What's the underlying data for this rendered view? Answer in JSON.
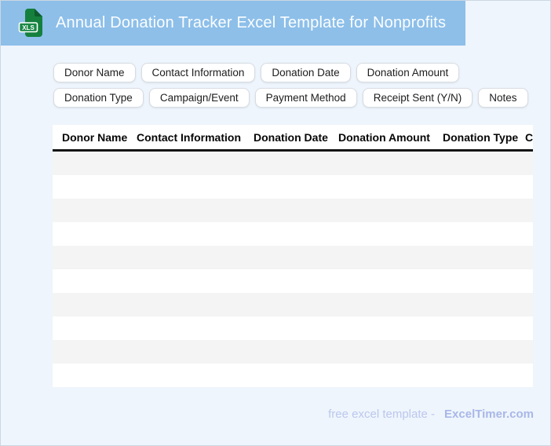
{
  "header": {
    "title": "Annual Donation Tracker Excel Template for Nonprofits",
    "icon_label": "XLS"
  },
  "chips": {
    "row1": [
      "Donor Name",
      "Contact Information",
      "Donation Date",
      "Donation Amount"
    ],
    "row2": [
      "Donation Type",
      "Campaign/Event",
      "Payment Method",
      "Receipt Sent (Y/N)",
      "Notes"
    ]
  },
  "table": {
    "columns": [
      "Donor Name",
      "Contact Information",
      "Donation Date",
      "Donation Amount",
      "Donation Type",
      "Campaign/Event"
    ],
    "row_count": 10,
    "rows": []
  },
  "footer": {
    "prefix": "free excel template -",
    "brand": "ExcelTimer.com"
  },
  "colors": {
    "header_bg": "#8dbfe9",
    "page_bg": "#eef5fc",
    "page_border": "#ccd7e3",
    "stripe_gray": "#f4f4f4",
    "table_rule": "#151515",
    "icon_green": "#15803d",
    "icon_green_dark": "#0d5c2e",
    "footer_text": "#bcc7ee",
    "footer_brand": "#a9b7e8"
  }
}
